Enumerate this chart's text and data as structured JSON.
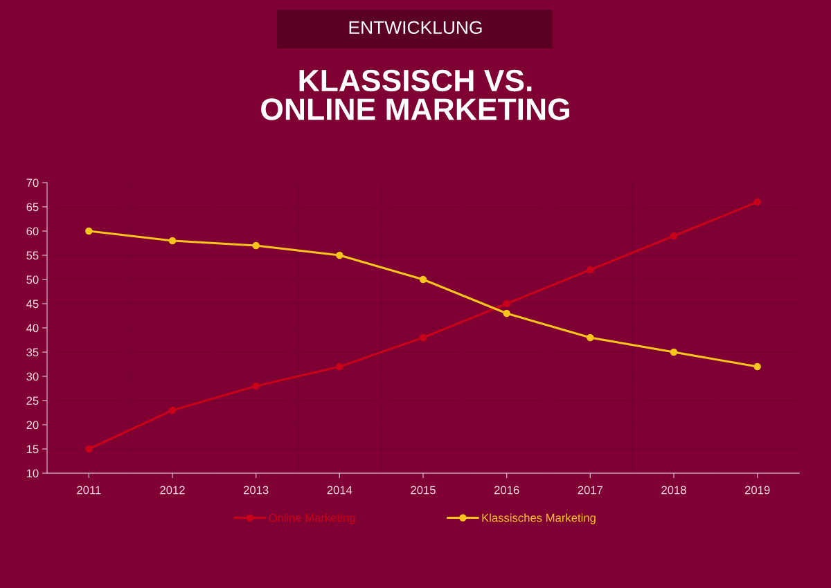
{
  "chart_data": {
    "type": "line",
    "subtitle": "ENTWICKLUNG",
    "title": "KLASSISCH VS.\nONLINE MARKETING",
    "categories": [
      "2011",
      "2012",
      "2013",
      "2014",
      "2015",
      "2016",
      "2017",
      "2018",
      "2019"
    ],
    "series": [
      {
        "name": "Online Marketing",
        "color": "#c8001a",
        "values": [
          15,
          23,
          28,
          32,
          38,
          45,
          52,
          59,
          66
        ]
      },
      {
        "name": "Klassisches Marketing",
        "color": "#f7c51e",
        "values": [
          60,
          58,
          57,
          55,
          50,
          43,
          38,
          35,
          32
        ]
      }
    ],
    "ylim": [
      10,
      70
    ],
    "yticks": [
      10,
      15,
      20,
      25,
      30,
      35,
      40,
      45,
      50,
      55,
      60,
      65,
      70
    ],
    "grid": true,
    "legend": "bottom",
    "marker": "circle",
    "line_style": "solid"
  }
}
